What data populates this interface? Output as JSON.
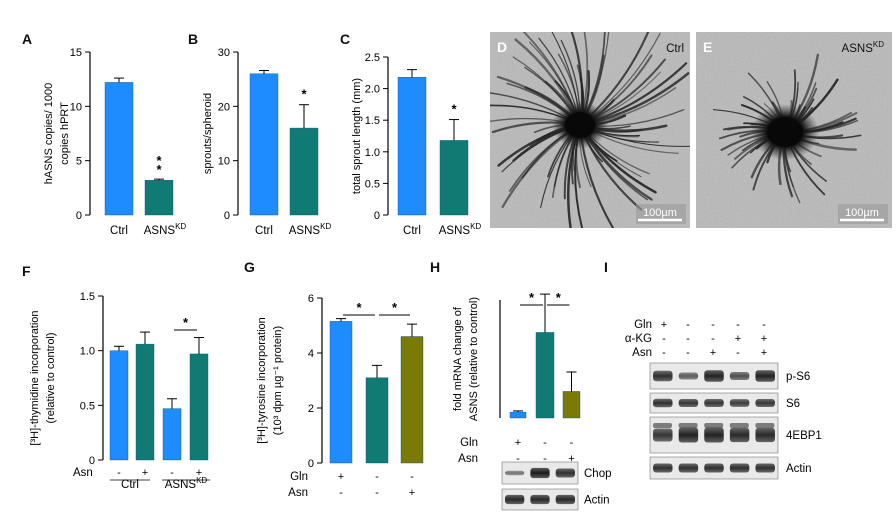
{
  "panel_labels": {
    "A": "A",
    "B": "B",
    "C": "C",
    "D": "D",
    "E": "E",
    "F": "F",
    "G": "G",
    "H": "H",
    "I": "I"
  },
  "colors": {
    "blue": "#1e8cff",
    "teal": "#0f7b73",
    "olive": "#7a7a06"
  },
  "chart_data": [
    {
      "panel": "A",
      "type": "bar",
      "ylabel_lines": [
        "hASNS copies/ 1000",
        "copies hPRT"
      ],
      "ylim": [
        0,
        15
      ],
      "yticks": [
        0,
        5,
        10,
        15
      ],
      "categories": [
        "Ctrl",
        "ASNS"
      ],
      "category_superscripts": [
        "",
        "KD"
      ],
      "values": [
        12.2,
        3.2
      ],
      "errors": [
        0.4,
        0.1
      ],
      "bar_colors": [
        "blue",
        "teal"
      ],
      "annotations": [
        "",
        "**"
      ]
    },
    {
      "panel": "B",
      "type": "bar",
      "ylabel_lines": [
        "sprouts/spheroid"
      ],
      "ylim": [
        0,
        30
      ],
      "yticks": [
        0,
        10,
        20,
        30
      ],
      "categories": [
        "Ctrl",
        "ASNS"
      ],
      "category_superscripts": [
        "",
        "KD"
      ],
      "values": [
        26.0,
        16.0
      ],
      "errors": [
        0.6,
        4.3
      ],
      "bar_colors": [
        "blue",
        "teal"
      ],
      "annotations": [
        "",
        "*"
      ]
    },
    {
      "panel": "C",
      "type": "bar",
      "ylabel_lines": [
        "total sprout length (mm)"
      ],
      "ylim": [
        0,
        2.5
      ],
      "yticks": [
        "0",
        "0.5",
        "1.0",
        "1.5",
        "2.0",
        "2.5"
      ],
      "categories": [
        "Ctrl",
        "ASNS"
      ],
      "category_superscripts": [
        "",
        "KD"
      ],
      "values": [
        2.18,
        1.18
      ],
      "errors": [
        0.12,
        0.33
      ],
      "bar_colors": [
        "blue",
        "teal"
      ],
      "annotations": [
        "",
        "*"
      ]
    },
    {
      "panel": "F",
      "type": "bar",
      "ylabel_lines": [
        "[³H]-thymidine incorporation",
        "(relative to control)"
      ],
      "ylim": [
        0,
        1.5
      ],
      "yticks": [
        "0",
        "0.5",
        "1.0",
        "1.5"
      ],
      "categories": [
        "-",
        "+",
        "-",
        "+"
      ],
      "values": [
        1.0,
        1.06,
        0.47,
        0.97
      ],
      "errors": [
        0.04,
        0.11,
        0.09,
        0.15
      ],
      "bar_colors": [
        "blue",
        "teal",
        "blue",
        "teal"
      ],
      "row_label": "Asn",
      "groups": [
        {
          "label": "Ctrl",
          "sup": ""
        },
        {
          "label": "ASNS",
          "sup": "KD"
        }
      ],
      "significance": [
        {
          "from": 2,
          "to": 3,
          "text": "*"
        }
      ]
    },
    {
      "panel": "G",
      "type": "bar",
      "ylabel_lines": [
        "[³H]-tyrosine incorporation",
        "(10³ dpm µg⁻¹ protein)"
      ],
      "ylim": [
        0,
        6
      ],
      "yticks": [
        0,
        2,
        4,
        6
      ],
      "values": [
        5.15,
        3.1,
        4.6
      ],
      "errors": [
        0.1,
        0.45,
        0.45
      ],
      "bar_colors": [
        "blue",
        "teal",
        "olive"
      ],
      "rows": [
        {
          "label": "Gln",
          "signs": [
            "+",
            "-",
            "-"
          ]
        },
        {
          "label": "Asn",
          "signs": [
            "-",
            "-",
            "+"
          ]
        }
      ],
      "significance": [
        {
          "from": 0,
          "to": 1,
          "text": "*"
        },
        {
          "from": 1,
          "to": 2,
          "text": "*"
        }
      ]
    },
    {
      "panel": "H",
      "type": "bar",
      "ylabel_lines": [
        "fold mRNA change of",
        "ASNS (relative to control)"
      ],
      "ylim": [
        0,
        20
      ],
      "yticks": [],
      "values": [
        1.0,
        14.5,
        4.5
      ],
      "errors": [
        0.2,
        6.5,
        3.3
      ],
      "bar_colors": [
        "blue",
        "teal",
        "olive"
      ],
      "rows": [
        {
          "label": "Gln",
          "signs": [
            "+",
            "-",
            "-"
          ]
        },
        {
          "label": "Asn",
          "signs": [
            "-",
            "-",
            "+"
          ]
        }
      ],
      "significance": [
        {
          "from": 0,
          "to": 1,
          "text": "*"
        },
        {
          "from": 1,
          "to": 2,
          "text": "*"
        }
      ]
    }
  ],
  "photos": [
    {
      "panel": "D",
      "label": "Ctrl",
      "label_sup": "",
      "scale_bar": "100µm"
    },
    {
      "panel": "E",
      "label": "ASNS",
      "label_sup": "KD",
      "scale_bar": "100µm"
    }
  ],
  "blot_H": {
    "bands": [
      "Chop",
      "Actin"
    ]
  },
  "blot_I": {
    "rows": [
      {
        "label": "Gln",
        "signs": [
          "+",
          "-",
          "-",
          "-",
          "-"
        ]
      },
      {
        "label": "α-KG",
        "signs": [
          "-",
          "-",
          "-",
          "+",
          "+"
        ]
      },
      {
        "label": "Asn",
        "signs": [
          "-",
          "-",
          "+",
          "-",
          "+"
        ]
      }
    ],
    "bands": [
      "p-S6",
      "S6",
      "4EBP1",
      "Actin"
    ]
  }
}
